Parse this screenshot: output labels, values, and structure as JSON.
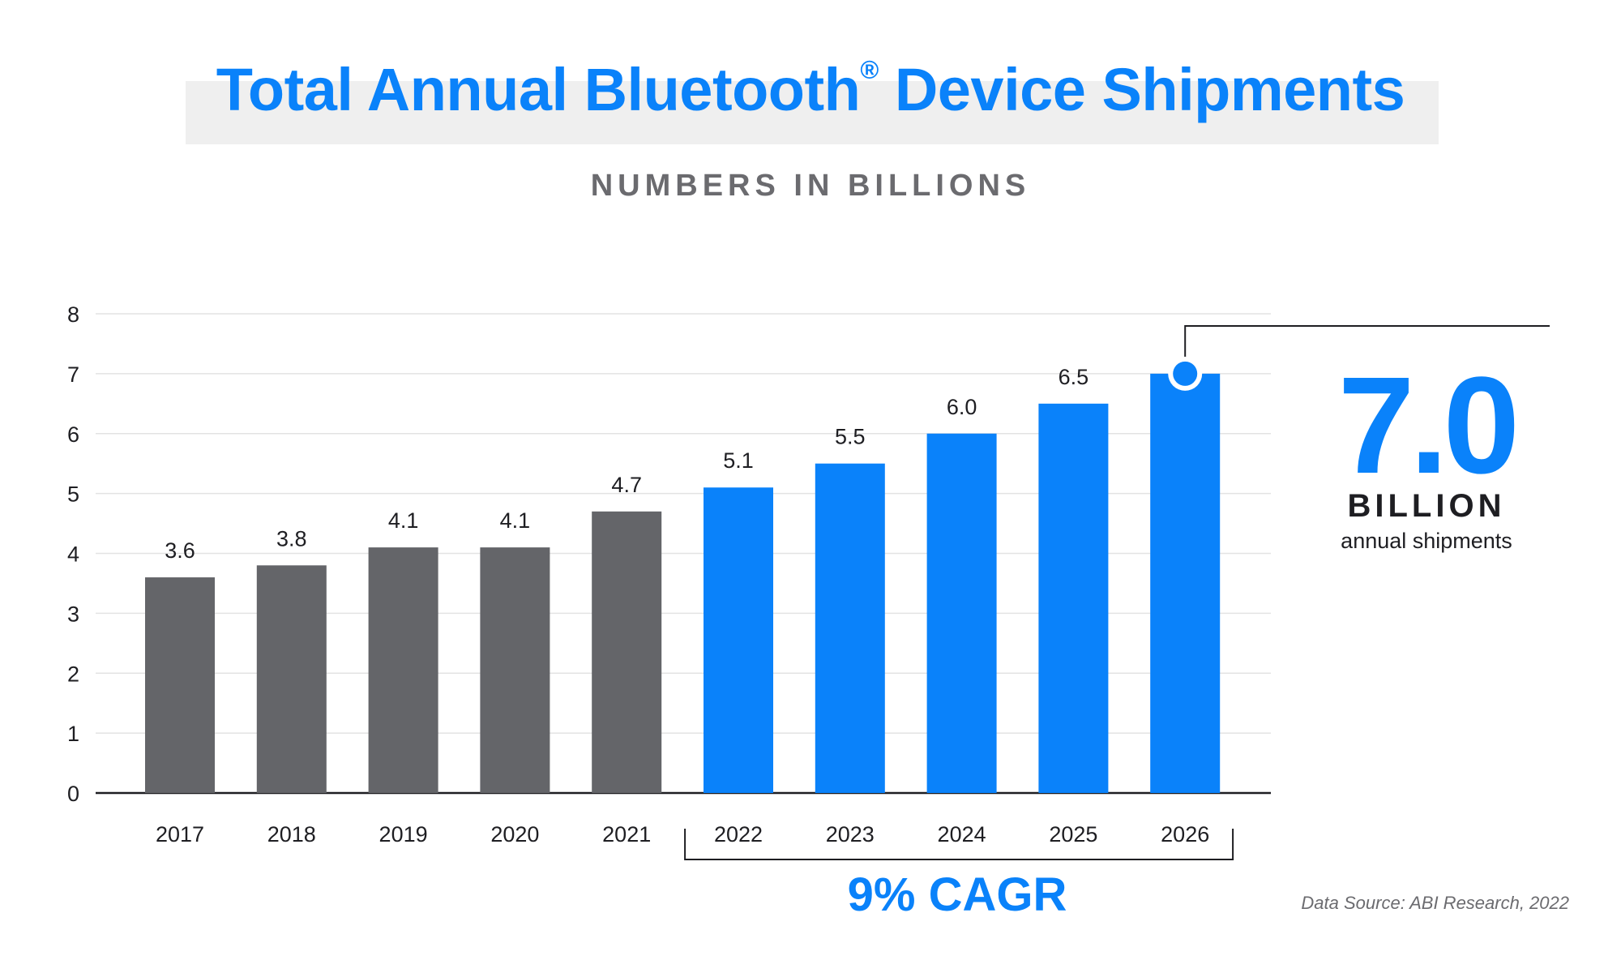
{
  "header": {
    "title": "Total Annual Bluetooth",
    "title_mark": "®",
    "title_suffix": " Device Shipments",
    "subtitle": "NUMBERS IN BILLIONS"
  },
  "callout": {
    "value": "7.0",
    "unit": "BILLION",
    "description": "annual shipments"
  },
  "annotation": {
    "cagr": "9% CAGR",
    "range": [
      "2022",
      "2026"
    ]
  },
  "source": "Data Source: ABI Research, 2022",
  "colors": {
    "historical": "#646569",
    "forecast": "#0a82fa",
    "accent": "#0a82fa"
  },
  "chart_data": {
    "type": "bar",
    "title": "Total Annual Bluetooth® Device Shipments",
    "subtitle": "NUMBERS IN BILLIONS",
    "categories": [
      "2017",
      "2018",
      "2019",
      "2020",
      "2021",
      "2022",
      "2023",
      "2024",
      "2025",
      "2026"
    ],
    "values": [
      3.6,
      3.8,
      4.1,
      4.1,
      4.7,
      5.1,
      5.5,
      6.0,
      6.5,
      7.0
    ],
    "data_labels": [
      "3.6",
      "3.8",
      "4.1",
      "4.1",
      "4.7",
      "5.1",
      "5.5",
      "6.0",
      "6.5",
      ""
    ],
    "bar_colors": [
      "historical",
      "historical",
      "historical",
      "historical",
      "historical",
      "forecast",
      "forecast",
      "forecast",
      "forecast",
      "forecast"
    ],
    "ylim": [
      0,
      8
    ],
    "yticks": [
      0,
      1,
      2,
      3,
      4,
      5,
      6,
      7,
      8
    ],
    "grid": true,
    "xlabel": "",
    "ylabel": ""
  }
}
